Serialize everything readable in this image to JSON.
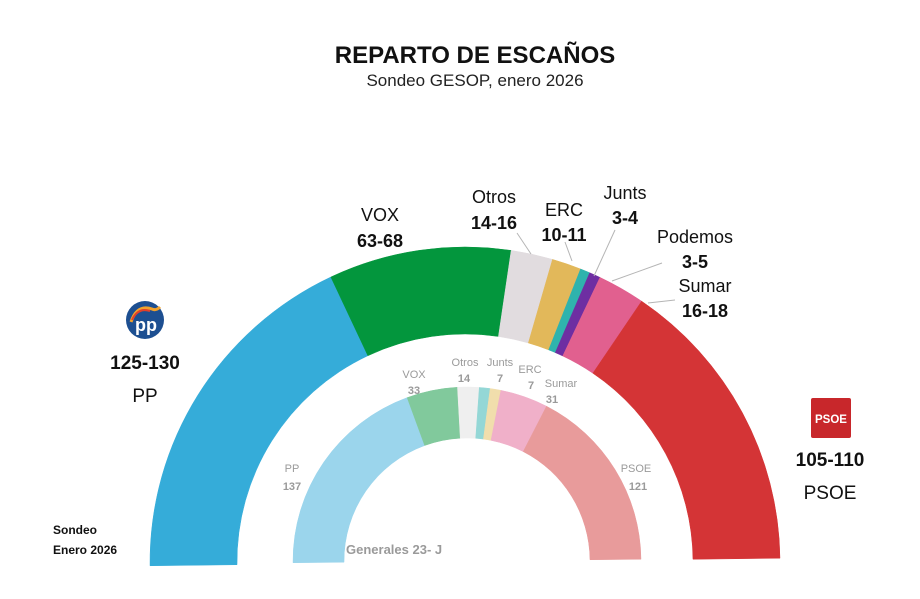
{
  "chart_data": {
    "type": "pie",
    "subtype": "semicircle-parliament",
    "title": "REPARTO DE ESCAÑOS",
    "subtitle": "Sondeo GESOP, enero 2026",
    "total_seats": 350,
    "note_lines": [
      "Sondeo",
      "Enero 2026"
    ],
    "outer_ring": {
      "label": "Sondeo enero 2026",
      "series": [
        {
          "party": "PP",
          "range": "125-130",
          "min": 125,
          "max": 130,
          "color": "#35acd9"
        },
        {
          "party": "VOX",
          "range": "63-68",
          "min": 63,
          "max": 68,
          "color": "#03963d"
        },
        {
          "party": "Otros",
          "range": "14-16",
          "min": 14,
          "max": 16,
          "color": "#e1dcdf"
        },
        {
          "party": "ERC",
          "range": "10-11",
          "min": 10,
          "max": 11,
          "color": "#e2b85a"
        },
        {
          "party": "Junts",
          "range": "3-4",
          "min": 3,
          "max": 4,
          "color": "#2fb3ad"
        },
        {
          "party": "Podemos",
          "range": "3-5",
          "min": 3,
          "max": 5,
          "color": "#6e2ea2"
        },
        {
          "party": "Sumar",
          "range": "16-18",
          "min": 16,
          "max": 18,
          "color": "#e1608f"
        },
        {
          "party": "PSOE",
          "range": "105-110",
          "min": 105,
          "max": 110,
          "color": "#d43436"
        }
      ]
    },
    "inner_ring": {
      "label": "Generales 23- J",
      "series": [
        {
          "party": "PP",
          "seats": 137,
          "color": "#9bd5ec"
        },
        {
          "party": "VOX",
          "seats": 33,
          "color": "#81c99c"
        },
        {
          "party": "Otros",
          "seats": 14,
          "color": "#efefef"
        },
        {
          "party": "Junts",
          "seats": 7,
          "color": "#94d7d6"
        },
        {
          "party": "ERC",
          "seats": 7,
          "color": "#f1deac"
        },
        {
          "party": "Sumar",
          "seats": 31,
          "color": "#f0b0c9"
        },
        {
          "party": "PSOE",
          "seats": 121,
          "color": "#e89b9b"
        }
      ]
    },
    "logos": {
      "pp": {
        "text": "pp",
        "color": "#1d4f91"
      },
      "psoe": {
        "text": "PSOE",
        "color": "#c8272b"
      }
    }
  }
}
